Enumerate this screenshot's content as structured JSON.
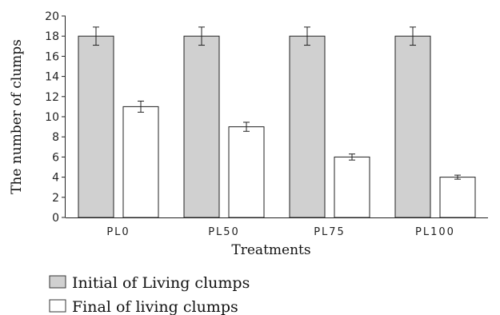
{
  "chart_data": {
    "type": "bar",
    "categories": [
      "PL0",
      "PL50",
      "PL75",
      "PL100"
    ],
    "series": [
      {
        "name": "Initial of Living clumps",
        "values": [
          18,
          18,
          18,
          18
        ],
        "errors": [
          0.9,
          0.9,
          0.9,
          0.9
        ],
        "color": "#d0d0d0"
      },
      {
        "name": "Final of living clumps",
        "values": [
          11,
          9,
          6,
          4
        ],
        "errors": [
          0.55,
          0.45,
          0.3,
          0.2
        ],
        "color": "#ffffff"
      }
    ],
    "xlabel": "Treatments",
    "ylabel": "The number of clumps",
    "ylim": [
      0,
      20
    ],
    "yticks": [
      "0",
      "2",
      "4",
      "6",
      "8",
      "10",
      "12",
      "14",
      "16",
      "18",
      "20"
    ],
    "grid": false,
    "legend_position": "bottom-left"
  }
}
